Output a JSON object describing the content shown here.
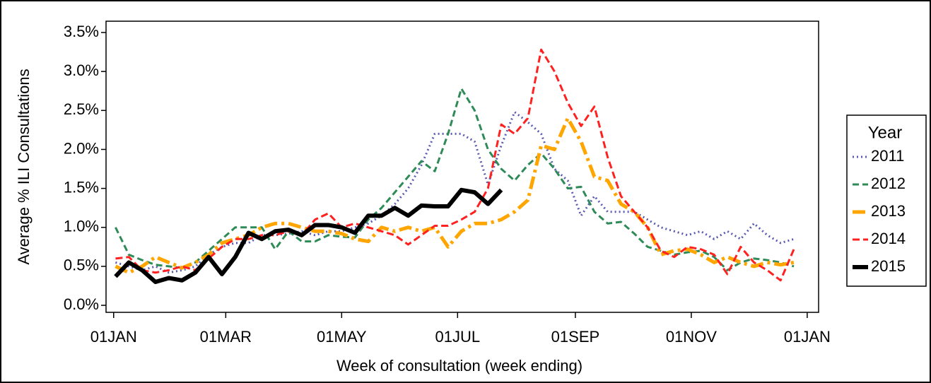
{
  "chart_data": {
    "type": "line",
    "ylabel": "Average % ILI Consultations",
    "xlabel": "Week of consultation (week ending)",
    "legend_title": "Year",
    "legend": "right",
    "x": [
      1,
      8,
      15,
      22,
      29,
      36,
      43,
      50,
      57,
      64,
      71,
      78,
      85,
      92,
      99,
      106,
      113,
      120,
      127,
      134,
      141,
      148,
      155,
      162,
      169,
      176,
      183,
      190,
      197,
      204,
      211,
      218,
      225,
      232,
      239,
      246,
      253,
      260,
      267,
      274,
      281,
      288,
      295,
      302,
      309,
      316,
      323,
      330,
      337,
      344,
      351,
      358
    ],
    "xlim": [
      -4,
      371
    ],
    "xticks": [
      {
        "value": 0,
        "label": "01JAN"
      },
      {
        "value": 59,
        "label": "01MAR"
      },
      {
        "value": 120,
        "label": "01MAY"
      },
      {
        "value": 181,
        "label": "01JUL"
      },
      {
        "value": 243,
        "label": "01SEP"
      },
      {
        "value": 304,
        "label": "01NOV"
      },
      {
        "value": 365,
        "label": "01JAN"
      }
    ],
    "ylim": [
      -0.09,
      3.645
    ],
    "yticks": [
      {
        "value": 0,
        "label": "0.0%"
      },
      {
        "value": 0.5,
        "label": "0.5%"
      },
      {
        "value": 1,
        "label": "1.0%"
      },
      {
        "value": 1.5,
        "label": "1.5%"
      },
      {
        "value": 2,
        "label": "2.0%"
      },
      {
        "value": 2.5,
        "label": "2.5%"
      },
      {
        "value": 3,
        "label": "3.0%"
      },
      {
        "value": 3.5,
        "label": "3.5%"
      }
    ],
    "series": [
      {
        "name": "2011",
        "color": "#5a5ab4",
        "dash": "2 4",
        "width": 3,
        "values": [
          0.55,
          0.5,
          0.45,
          0.5,
          0.42,
          0.45,
          0.5,
          0.65,
          0.75,
          0.8,
          0.8,
          0.9,
          0.9,
          0.92,
          0.95,
          0.9,
          0.95,
          0.95,
          1.0,
          1.05,
          1.15,
          1.3,
          1.5,
          1.8,
          2.2,
          2.2,
          2.2,
          2.1,
          1.55,
          2.05,
          2.48,
          2.35,
          2.2,
          1.75,
          1.6,
          1.15,
          1.4,
          1.2,
          1.2,
          1.2,
          1.1,
          1.0,
          0.95,
          0.9,
          0.95,
          0.85,
          0.95,
          0.85,
          1.05,
          0.9,
          0.8,
          0.85
        ]
      },
      {
        "name": "2012",
        "color": "#2e8b57",
        "dash": "9 5",
        "width": 3,
        "values": [
          1.0,
          0.65,
          0.58,
          0.52,
          0.5,
          0.48,
          0.55,
          0.7,
          0.85,
          1.0,
          1.0,
          1.0,
          0.72,
          0.95,
          0.82,
          0.82,
          0.9,
          0.88,
          0.87,
          1.1,
          1.25,
          1.45,
          1.65,
          1.85,
          1.72,
          2.2,
          2.78,
          2.5,
          2.0,
          1.75,
          1.6,
          1.8,
          1.95,
          1.75,
          1.5,
          1.52,
          1.2,
          1.05,
          1.07,
          0.92,
          0.75,
          0.7,
          0.65,
          0.68,
          0.7,
          0.62,
          0.45,
          0.55,
          0.6,
          0.58,
          0.55,
          0.5
        ]
      },
      {
        "name": "2013",
        "color": "#ffa500",
        "dash": "18 6 4 6",
        "width": 5,
        "values": [
          0.5,
          0.42,
          0.5,
          0.62,
          0.55,
          0.48,
          0.55,
          0.65,
          0.8,
          0.85,
          0.9,
          1.0,
          1.05,
          1.05,
          1.0,
          0.95,
          0.95,
          0.92,
          0.85,
          0.82,
          1.0,
          0.95,
          1.0,
          0.95,
          1.0,
          0.75,
          0.95,
          1.05,
          1.05,
          1.1,
          1.2,
          1.35,
          2.05,
          2.0,
          2.4,
          2.1,
          1.65,
          1.6,
          1.3,
          1.2,
          1.0,
          0.65,
          0.7,
          0.72,
          0.65,
          0.55,
          0.62,
          0.55,
          0.5,
          0.55,
          0.52,
          0.55
        ]
      },
      {
        "name": "2014",
        "color": "#ff2020",
        "dash": "10 5",
        "width": 3,
        "values": [
          0.6,
          0.62,
          0.45,
          0.42,
          0.45,
          0.5,
          0.45,
          0.6,
          0.75,
          0.85,
          0.85,
          0.9,
          0.9,
          0.95,
          0.9,
          1.1,
          1.18,
          1.0,
          1.05,
          1.0,
          0.95,
          0.9,
          0.78,
          0.9,
          1.02,
          1.02,
          1.1,
          1.2,
          1.5,
          2.32,
          2.2,
          2.4,
          3.28,
          3.0,
          2.6,
          2.3,
          2.55,
          1.9,
          1.4,
          1.2,
          1.0,
          0.7,
          0.62,
          0.75,
          0.72,
          0.65,
          0.4,
          0.75,
          0.55,
          0.45,
          0.32,
          0.72
        ]
      },
      {
        "name": "2015",
        "color": "#000000",
        "dash": "none",
        "width": 6,
        "values": [
          0.37,
          0.55,
          0.45,
          0.3,
          0.35,
          0.32,
          0.42,
          0.62,
          0.4,
          0.62,
          0.93,
          0.85,
          0.95,
          0.97,
          0.9,
          1.03,
          1.03,
          1.0,
          0.93,
          1.15,
          1.15,
          1.25,
          1.15,
          1.28,
          1.27,
          1.27,
          1.48,
          1.45,
          1.3,
          1.48,
          null,
          null,
          null,
          null,
          null,
          null,
          null,
          null,
          null,
          null,
          null,
          null,
          null,
          null,
          null,
          null,
          null,
          null,
          null,
          null,
          null,
          null
        ]
      }
    ]
  }
}
